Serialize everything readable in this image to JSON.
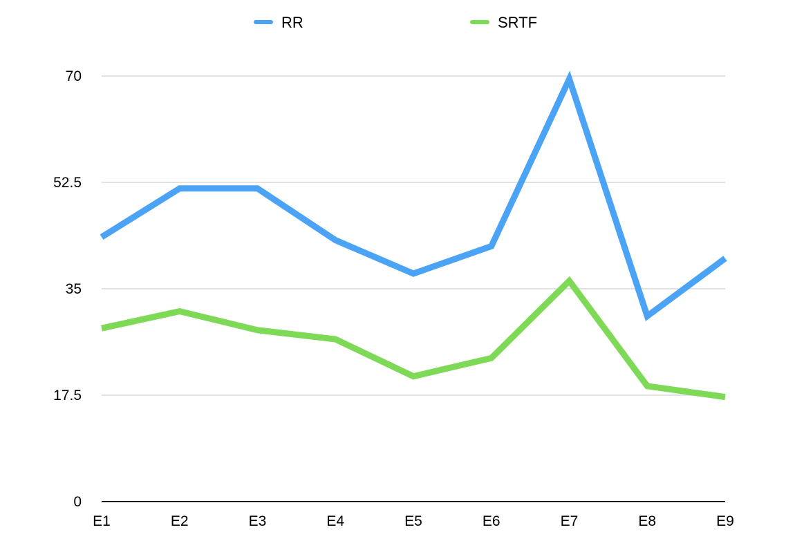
{
  "chart_data": {
    "type": "line",
    "categories": [
      "E1",
      "E2",
      "E3",
      "E4",
      "E5",
      "E6",
      "E7",
      "E8",
      "E9"
    ],
    "series": [
      {
        "name": "RR",
        "color": "#4ba3f5",
        "values": [
          43.5,
          51.5,
          51.5,
          43,
          37.5,
          42,
          69.5,
          30.5,
          40
        ]
      },
      {
        "name": "SRTF",
        "color": "#7ed957",
        "values": [
          28.5,
          31.3,
          28.2,
          26.7,
          20.6,
          23.6,
          36.3,
          19,
          17.2
        ]
      }
    ],
    "yticks": [
      "0",
      "17.5",
      "35",
      "52.5",
      "70"
    ],
    "ylim": [
      0,
      70
    ],
    "title": "",
    "xlabel": "",
    "ylabel": "",
    "grid": true,
    "legend_position": "top-center"
  }
}
